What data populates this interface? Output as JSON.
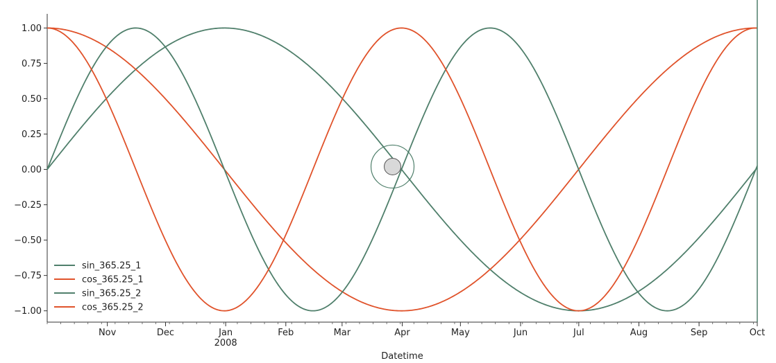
{
  "chart_data": {
    "type": "line",
    "xlabel": "Datetime",
    "ylabel": "",
    "title": "",
    "x_domain": [
      "2007-10-01",
      "2008-10-01"
    ],
    "ylim": [
      -1.08,
      1.1
    ],
    "y_ticks": [
      1.0,
      0.75,
      0.5,
      0.25,
      0.0,
      -0.25,
      -0.5,
      -0.75,
      -1.0
    ],
    "y_tick_labels": [
      "1.00",
      "0.75",
      "0.50",
      "0.25",
      "0.00",
      "−0.25",
      "−0.50",
      "−0.75",
      "−1.00"
    ],
    "x_ticks": [
      {
        "date": "2007-11-01",
        "label": "Nov",
        "sublabel": ""
      },
      {
        "date": "2007-12-01",
        "label": "Dec",
        "sublabel": ""
      },
      {
        "date": "2008-01-01",
        "label": "Jan",
        "sublabel": "2008"
      },
      {
        "date": "2008-02-01",
        "label": "Feb",
        "sublabel": ""
      },
      {
        "date": "2008-03-01",
        "label": "Mar",
        "sublabel": ""
      },
      {
        "date": "2008-04-01",
        "label": "Apr",
        "sublabel": ""
      },
      {
        "date": "2008-05-01",
        "label": "May",
        "sublabel": ""
      },
      {
        "date": "2008-06-01",
        "label": "Jun",
        "sublabel": ""
      },
      {
        "date": "2008-07-01",
        "label": "Jul",
        "sublabel": ""
      },
      {
        "date": "2008-08-01",
        "label": "Aug",
        "sublabel": ""
      },
      {
        "date": "2008-09-01",
        "label": "Sep",
        "sublabel": ""
      },
      {
        "date": "2008-10-01",
        "label": "Oct",
        "sublabel": ""
      }
    ],
    "series": [
      {
        "name": "sin_365.25_1",
        "fn": "sin",
        "cycles_per_year": 1,
        "color": "#4f7f6b"
      },
      {
        "name": "cos_365.25_1",
        "fn": "cos",
        "cycles_per_year": 1,
        "color": "#e0522a"
      },
      {
        "name": "sin_365.25_2",
        "fn": "sin",
        "cycles_per_year": 2,
        "color": "#4f7f6b"
      },
      {
        "name": "cos_365.25_2",
        "fn": "cos",
        "cycles_per_year": 2,
        "color": "#e0522a"
      }
    ],
    "period_days": 365.25,
    "grid": false,
    "legend_position": "lower-left",
    "cursor_marker": {
      "date": "2008-03-27",
      "value": 0.02
    },
    "cursor_line_date": "2008-10-01"
  }
}
